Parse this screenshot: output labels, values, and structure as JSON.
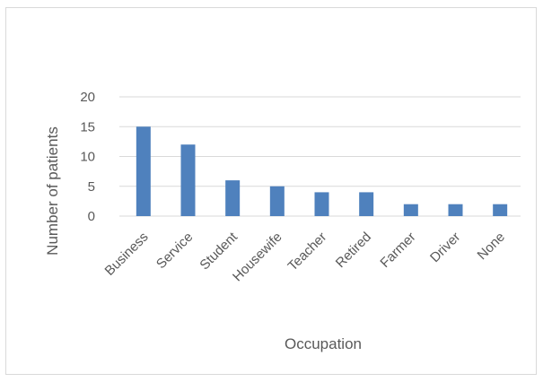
{
  "chart_data": {
    "type": "bar",
    "title": "",
    "xlabel": "Occupation",
    "ylabel": "Number of patients",
    "categories": [
      "Business",
      "Service",
      "Student",
      "Housewife",
      "Teacher",
      "Retired",
      "Farmer",
      "Driver",
      "None"
    ],
    "values": [
      15,
      12,
      6,
      5,
      4,
      4,
      2,
      2,
      2
    ],
    "ylim": [
      0,
      20
    ],
    "yticks": [
      0,
      5,
      10,
      15,
      20
    ],
    "grid": true,
    "legend": "none",
    "bar_color": "#4f81bd",
    "grid_color": "#d9d9d9"
  }
}
